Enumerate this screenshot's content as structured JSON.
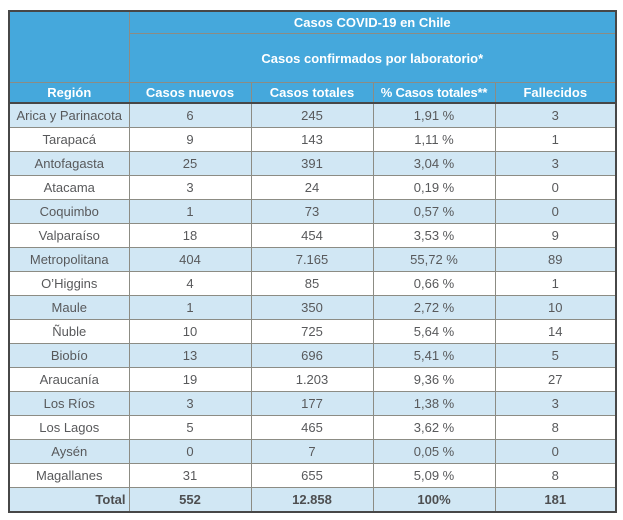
{
  "colors": {
    "header_blue": "#45A8DC",
    "row_alt_blue": "#D1E7F4",
    "border_inner": "#8C8C84",
    "border_outer": "#474747",
    "data_text": "#58595B"
  },
  "table": {
    "title": "Casos COVID-19 en Chile",
    "subtitle": "Casos confirmados por laboratorio*",
    "columns": [
      "Región",
      "Casos nuevos",
      "Casos totales",
      "% Casos totales**",
      "Fallecidos"
    ],
    "total": {
      "label": "Total",
      "nuevos": "552",
      "totales": "12.858",
      "pct": "100%",
      "fallecidos": "181"
    }
  },
  "chart_data": {
    "type": "table",
    "title": "Casos COVID-19 en Chile",
    "subtitle": "Casos confirmados por laboratorio*",
    "columns": [
      "Región",
      "Casos nuevos",
      "Casos totales",
      "% Casos totales**",
      "Fallecidos"
    ],
    "rows": [
      {
        "region": "Arica y Parinacota",
        "nuevos": "6",
        "totales": "245",
        "pct": "1,91 %",
        "fallecidos": "3"
      },
      {
        "region": "Tarapacá",
        "nuevos": "9",
        "totales": "143",
        "pct": "1,11 %",
        "fallecidos": "1"
      },
      {
        "region": "Antofagasta",
        "nuevos": "25",
        "totales": "391",
        "pct": "3,04 %",
        "fallecidos": "3"
      },
      {
        "region": "Atacama",
        "nuevos": "3",
        "totales": "24",
        "pct": "0,19 %",
        "fallecidos": "0"
      },
      {
        "region": "Coquimbo",
        "nuevos": "1",
        "totales": "73",
        "pct": "0,57 %",
        "fallecidos": "0"
      },
      {
        "region": "Valparaíso",
        "nuevos": "18",
        "totales": "454",
        "pct": "3,53 %",
        "fallecidos": "9"
      },
      {
        "region": "Metropolitana",
        "nuevos": "404",
        "totales": "7.165",
        "pct": "55,72 %",
        "fallecidos": "89"
      },
      {
        "region": "O’Higgins",
        "nuevos": "4",
        "totales": "85",
        "pct": "0,66 %",
        "fallecidos": "1"
      },
      {
        "region": "Maule",
        "nuevos": "1",
        "totales": "350",
        "pct": "2,72 %",
        "fallecidos": "10"
      },
      {
        "region": "Ñuble",
        "nuevos": "10",
        "totales": "725",
        "pct": "5,64 %",
        "fallecidos": "14"
      },
      {
        "region": "Biobío",
        "nuevos": "13",
        "totales": "696",
        "pct": "5,41 %",
        "fallecidos": "5"
      },
      {
        "region": "Araucanía",
        "nuevos": "19",
        "totales": "1.203",
        "pct": "9,36 %",
        "fallecidos": "27"
      },
      {
        "region": "Los Ríos",
        "nuevos": "3",
        "totales": "177",
        "pct": "1,38 %",
        "fallecidos": "3"
      },
      {
        "region": "Los Lagos",
        "nuevos": "5",
        "totales": "465",
        "pct": "3,62 %",
        "fallecidos": "8"
      },
      {
        "region": "Aysén",
        "nuevos": "0",
        "totales": "7",
        "pct": "0,05 %",
        "fallecidos": "0"
      },
      {
        "region": "Magallanes",
        "nuevos": "31",
        "totales": "655",
        "pct": "5,09 %",
        "fallecidos": "8"
      }
    ],
    "total_row": {
      "region": "Total",
      "nuevos": "552",
      "totales": "12.858",
      "pct": "100%",
      "fallecidos": "181"
    }
  }
}
